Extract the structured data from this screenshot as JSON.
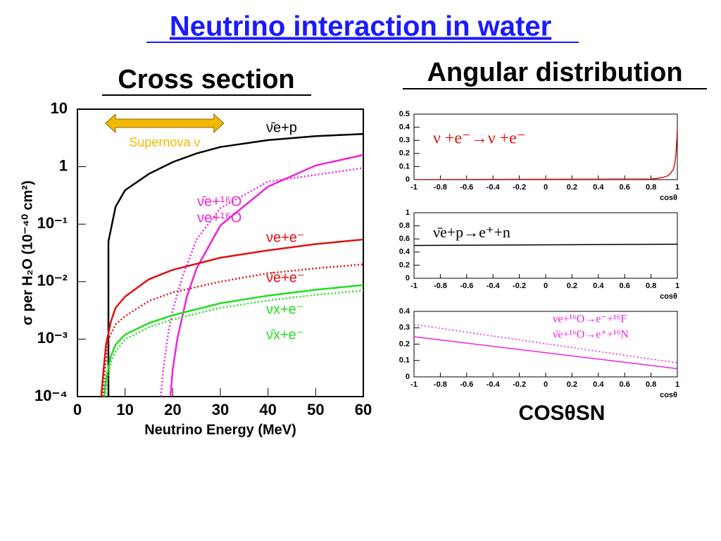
{
  "title": "Neutrino interaction in water",
  "angular_title": "Angular distribution",
  "bottom_label": "COSθSN",
  "chart_data": [
    {
      "type": "line",
      "title": "Cross section",
      "log_y": true,
      "xlabel": "Neutrino Energy (MeV)",
      "ylabel": "σ per H₂O (10⁻⁴⁰ cm²)",
      "xlim": [
        0,
        60
      ],
      "xticks": [
        0,
        10,
        20,
        30,
        40,
        50,
        60
      ],
      "ylim": [
        0.0001,
        10
      ],
      "yticks": [
        10,
        1,
        {
          "value": 0.1,
          "label": "10⁻¹"
        },
        {
          "value": 0.01,
          "label": "10⁻²"
        },
        {
          "value": 0.001,
          "label": "10⁻³"
        },
        {
          "value": 0.0001,
          "label": "10⁻⁴"
        }
      ],
      "annotation": {
        "text": "Supernova ν",
        "xrange": [
          5.9,
          30.7
        ],
        "color": "#f5b800"
      },
      "series": [
        {
          "name": "ν̄e+p",
          "color": "#000000",
          "dashed": false,
          "x": [
            6.5,
            6.5,
            8,
            10,
            15,
            20,
            25,
            30,
            40,
            50,
            60
          ],
          "values": [
            0.0001,
            0.05,
            0.2,
            0.39,
            0.75,
            1.2,
            1.7,
            2.2,
            2.9,
            3.4,
            3.7
          ]
        },
        {
          "name": "ν̄e+¹⁶O",
          "color": "#ee22dd",
          "dashed": true,
          "x": [
            17.5,
            18,
            19,
            20,
            22,
            25,
            30,
            40,
            50,
            60
          ],
          "values": [
            0.0001,
            0.0003,
            0.0012,
            0.0032,
            0.012,
            0.054,
            0.19,
            0.55,
            0.72,
            0.95
          ]
        },
        {
          "name": "νe+¹⁶O",
          "color": "#ee22dd",
          "dashed": false,
          "x": [
            19.5,
            20,
            21,
            23,
            25,
            30,
            40,
            50,
            60
          ],
          "values": [
            0.0001,
            0.0003,
            0.00105,
            0.0056,
            0.017,
            0.095,
            0.45,
            1.05,
            1.6
          ]
        },
        {
          "name": "νe+e⁻",
          "color": "#e01010",
          "dashed": false,
          "x": [
            5,
            5.5,
            6,
            7,
            8,
            10,
            15,
            20,
            30,
            40,
            50,
            60
          ],
          "values": [
            0.0001,
            0.0003,
            0.0008,
            0.002,
            0.0035,
            0.0055,
            0.011,
            0.016,
            0.026,
            0.035,
            0.045,
            0.054
          ]
        },
        {
          "name": "ν̄e+e⁻",
          "color": "#e01010",
          "dashed": true,
          "x": [
            5.3,
            5.8,
            6.5,
            8,
            10,
            15,
            20,
            30,
            40,
            50,
            60
          ],
          "values": [
            0.0001,
            0.0003,
            0.001,
            0.0018,
            0.0025,
            0.0046,
            0.0065,
            0.01,
            0.014,
            0.017,
            0.02
          ]
        },
        {
          "name": "νx+e⁻",
          "color": "#22dd22",
          "dashed": false,
          "x": [
            5.6,
            6,
            7,
            8,
            10,
            15,
            20,
            30,
            40,
            50,
            60
          ],
          "values": [
            0.0001,
            0.0002,
            0.0005,
            0.0008,
            0.0012,
            0.0019,
            0.0026,
            0.0042,
            0.0057,
            0.0072,
            0.0087
          ]
        },
        {
          "name": "ν̄x+e⁻",
          "color": "#22dd22",
          "dashed": true,
          "x": [
            5.8,
            6.2,
            7,
            8,
            10,
            15,
            20,
            30,
            40,
            50,
            60
          ],
          "values": [
            0.0001,
            0.00018,
            0.0004,
            0.0006,
            0.001,
            0.0016,
            0.0022,
            0.0035,
            0.0047,
            0.0059,
            0.007
          ]
        }
      ]
    },
    {
      "type": "line",
      "xlabel": "cosθ",
      "xlim": [
        -1,
        1
      ],
      "xticks": [
        -1,
        -0.8,
        -0.6,
        -0.4,
        -0.2,
        0,
        0.2,
        0.4,
        0.6,
        0.8,
        1
      ],
      "ylim": [
        0,
        0.5
      ],
      "yticks": [
        0,
        0.1,
        0.2,
        0.3,
        0.4,
        0.5
      ],
      "series": [
        {
          "name": "ν +e⁻→ν +e⁻",
          "color": "#e01010",
          "dashed": false,
          "x": [
            -1,
            0.8,
            0.85,
            0.9,
            0.93,
            0.95,
            0.97,
            0.98,
            0.99,
            1
          ],
          "values": [
            0,
            0.005,
            0.01,
            0.02,
            0.03,
            0.05,
            0.08,
            0.12,
            0.2,
            0.38
          ]
        }
      ]
    },
    {
      "type": "line",
      "xlabel": "cosθ",
      "xlim": [
        -1,
        1
      ],
      "xticks": [
        -1,
        -0.8,
        -0.6,
        -0.4,
        -0.2,
        0,
        0.2,
        0.4,
        0.6,
        0.8,
        1
      ],
      "ylim": [
        0,
        1
      ],
      "yticks": [
        0,
        0.2,
        0.4,
        0.6,
        0.8,
        1
      ],
      "series": [
        {
          "name": "ν̄e+p→e⁺+n",
          "color": "#000000",
          "dashed": false,
          "x": [
            -1,
            1
          ],
          "values": [
            0.5,
            0.52
          ]
        }
      ]
    },
    {
      "type": "line",
      "xlabel": "cosθ",
      "xlim": [
        -1,
        1
      ],
      "xticks": [
        -1,
        -0.8,
        -0.6,
        -0.4,
        -0.2,
        0,
        0.2,
        0.4,
        0.6,
        0.8,
        1
      ],
      "ylim": [
        0,
        0.4
      ],
      "yticks": [
        0,
        0.1,
        0.2,
        0.3,
        0.4
      ],
      "series": [
        {
          "name": "νe+¹⁶O→e⁻+¹⁶F",
          "color": "#ee22dd",
          "dashed": false,
          "x": [
            -1,
            1
          ],
          "values": [
            0.245,
            0.05
          ]
        },
        {
          "name": "ν̄e+¹⁶O→e⁺+¹⁶N",
          "color": "#ee22dd",
          "dashed": true,
          "x": [
            -1,
            1
          ],
          "values": [
            0.32,
            0.085
          ]
        }
      ]
    }
  ]
}
